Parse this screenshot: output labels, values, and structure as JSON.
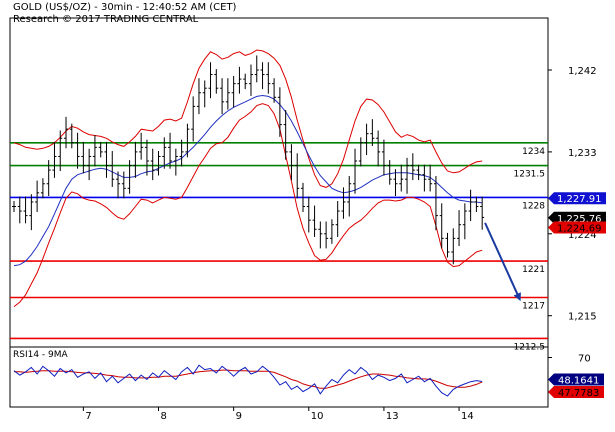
{
  "header": {
    "title": "GOLD (US$/OZ) - 30min - 12:40:52 AM (CET)",
    "subtitle": "Research © 2017 TRADING CENTRAL"
  },
  "chart_data": [
    {
      "type": "line",
      "title": "GOLD (US$/OZ) - 30min - 12:40:52 AM (CET)",
      "ylim": [
        1212,
        1245
      ],
      "y_ticks": [
        1215,
        1224,
        1233,
        1242
      ],
      "x_ticks": [
        "7",
        "8",
        "9",
        "10",
        "13",
        "14"
      ],
      "x_tick_index": [
        12,
        25,
        38,
        51,
        64,
        77
      ],
      "n_bars": 82,
      "grid": false,
      "colors": {
        "price": "#000000",
        "bollinger": "#dd0000",
        "ma": "#2030c0",
        "resistance": "#008000",
        "pivot": "#0000ee",
        "support": "#ee0000",
        "arrow": "#1a3aa0"
      },
      "series": [
        {
          "name": "",
          "values": [
            1227.0,
            1226.5,
            1226.0,
            1227.5,
            1228.5,
            1229.5,
            1231.0,
            1232.5,
            1234.5,
            1235.5,
            1234.0,
            1232.5,
            1231.5,
            1232.5,
            1233.5,
            1233.0,
            1231.5,
            1230.0,
            1229.5,
            1229.0,
            1231.5,
            1233.0,
            1233.5,
            1232.0,
            1231.0,
            1232.5,
            1233.5,
            1232.0,
            1232.5,
            1233.0,
            1235.5,
            1238.0,
            1239.5,
            1240.0,
            1241.5,
            1240.0,
            1238.5,
            1239.5,
            1240.5,
            1241.0,
            1240.5,
            1241.5,
            1242.0,
            1241.5,
            1240.5,
            1239.0,
            1236.0,
            1233.0,
            1231.5,
            1229.0,
            1227.0,
            1225.5,
            1224.5,
            1224.0,
            1223.5,
            1225.0,
            1226.5,
            1227.5,
            1229.5,
            1232.0,
            1234.0,
            1235.0,
            1234.5,
            1233.0,
            1231.5,
            1230.0,
            1229.5,
            1230.0,
            1231.5,
            1231.0,
            1230.5,
            1230.0,
            1229.5,
            1226.0,
            1223.5,
            1222.0,
            1223.5,
            1225.0,
            1226.5,
            1227.5,
            1227.0,
            1225.8
          ]
        },
        {
          "name": "",
          "values": [
            1234.0,
            1233.8,
            1233.5,
            1233.4,
            1233.3,
            1233.4,
            1233.6,
            1234.0,
            1234.6,
            1235.3,
            1235.8,
            1235.6,
            1235.2,
            1234.9,
            1234.8,
            1234.7,
            1234.5,
            1234.1,
            1233.8,
            1233.6,
            1234.1,
            1234.7,
            1235.5,
            1235.4,
            1235.3,
            1235.8,
            1236.5,
            1236.6,
            1236.4,
            1236.7,
            1238.5,
            1240.5,
            1242.2,
            1243.2,
            1244.0,
            1243.7,
            1243.2,
            1243.4,
            1243.8,
            1244.0,
            1243.6,
            1243.8,
            1244.2,
            1244.1,
            1243.8,
            1243.3,
            1242.5,
            1241.0,
            1239.0,
            1236.5,
            1234.3,
            1232.3,
            1230.5,
            1229.3,
            1229.1,
            1229.5,
            1230.6,
            1232.2,
            1234.3,
            1236.4,
            1238.0,
            1238.8,
            1238.7,
            1238.2,
            1237.4,
            1236.3,
            1235.2,
            1234.6,
            1234.9,
            1234.7,
            1234.3,
            1234.1,
            1234.3,
            1233.0,
            1231.8,
            1230.9,
            1230.7,
            1230.8,
            1231.2,
            1231.6,
            1231.9,
            1232.0
          ]
        },
        {
          "name": "",
          "values": [
            1220.5,
            1220.6,
            1221.0,
            1221.7,
            1222.6,
            1223.7,
            1224.8,
            1226.2,
            1227.6,
            1229.0,
            1230.0,
            1230.5,
            1230.7,
            1230.9,
            1231.1,
            1231.2,
            1231.1,
            1230.8,
            1230.5,
            1230.2,
            1230.2,
            1230.3,
            1230.6,
            1230.8,
            1230.9,
            1231.2,
            1231.5,
            1231.8,
            1232.0,
            1232.3,
            1232.9,
            1233.5,
            1234.2,
            1234.9,
            1235.7,
            1236.4,
            1237.0,
            1237.5,
            1237.9,
            1238.2,
            1238.5,
            1238.8,
            1239.1,
            1239.2,
            1239.1,
            1238.8,
            1238.2,
            1237.4,
            1236.4,
            1235.2,
            1233.9,
            1232.6,
            1231.4,
            1230.4,
            1229.7,
            1229.0,
            1228.7,
            1228.5,
            1228.6,
            1228.8,
            1229.1,
            1229.5,
            1229.9,
            1230.2,
            1230.5,
            1230.6,
            1230.7,
            1230.7,
            1230.7,
            1230.6,
            1230.5,
            1230.4,
            1230.2,
            1229.7,
            1229.1,
            1228.5,
            1228.0,
            1227.7,
            1227.6,
            1227.5,
            1227.5,
            1227.4
          ]
        },
        {
          "name": "",
          "values": [
            1216.0,
            1216.5,
            1217.3,
            1218.5,
            1219.7,
            1221.3,
            1223.0,
            1224.6,
            1226.3,
            1227.9,
            1228.6,
            1228.4,
            1227.9,
            1227.7,
            1227.6,
            1227.3,
            1226.9,
            1226.3,
            1225.8,
            1225.6,
            1226.2,
            1227.0,
            1227.8,
            1227.7,
            1227.4,
            1227.7,
            1228.0,
            1227.9,
            1227.8,
            1228.0,
            1229.1,
            1230.3,
            1231.5,
            1232.4,
            1233.4,
            1233.9,
            1234.0,
            1234.6,
            1235.6,
            1236.5,
            1236.9,
            1237.4,
            1238.1,
            1238.3,
            1238.1,
            1237.2,
            1235.5,
            1232.6,
            1229.8,
            1226.8,
            1224.6,
            1223.0,
            1221.6,
            1221.1,
            1221.2,
            1221.9,
            1222.9,
            1223.8,
            1224.6,
            1225.1,
            1225.5,
            1226.1,
            1226.8,
            1227.4,
            1227.7,
            1227.7,
            1227.6,
            1227.7,
            1228.0,
            1228.0,
            1227.8,
            1227.5,
            1227.0,
            1224.9,
            1222.4,
            1220.9,
            1220.4,
            1220.5,
            1221.0,
            1221.5,
            1222.0,
            1222.2
          ]
        }
      ],
      "levels": [
        {
          "label": "1234",
          "value": 1234.0,
          "kind": "resistance"
        },
        {
          "label": "1231.5",
          "value": 1231.5,
          "kind": "resistance"
        },
        {
          "label": "1228",
          "value": 1228.0,
          "kind": "pivot"
        },
        {
          "label": "1221",
          "value": 1221.0,
          "kind": "support"
        },
        {
          "label": "1217",
          "value": 1217.0,
          "kind": "support"
        },
        {
          "label": "1212.5",
          "value": 1212.5,
          "kind": "support"
        }
      ],
      "price_tags": [
        {
          "label": "1,227.91",
          "value": 1227.91,
          "fill": "#1010d0",
          "color": "#ffffff"
        },
        {
          "label": "1,225.76",
          "value": 1225.76,
          "fill": "#000000",
          "color": "#ffffff"
        },
        {
          "label": "1,224.69",
          "value": 1224.69,
          "fill": "#e00000",
          "color": "#000000"
        }
      ],
      "forecast_arrow": {
        "from_index": 81.5,
        "from_value": 1225.2,
        "to_index": 87.5,
        "to_value": 1216.8
      }
    },
    {
      "type": "line",
      "title": "RSI14 - 9MA",
      "ylim": [
        25,
        75
      ],
      "y_ticks": [
        70
      ],
      "x_ticks": [
        "7",
        "8",
        "9",
        "10",
        "13",
        "14"
      ],
      "x_tick_index": [
        12,
        25,
        38,
        51,
        64,
        77
      ],
      "n_bars": 82,
      "grid": false,
      "colors": {
        "rsi": "#1020c0",
        "ma": "#cc0000"
      },
      "series": [
        {
          "name": "",
          "values": [
            58,
            54,
            57,
            61,
            55,
            62,
            58,
            53,
            60,
            56,
            59,
            52,
            55,
            57,
            51,
            56,
            48,
            53,
            47,
            51,
            55,
            49,
            54,
            50,
            56,
            52,
            58,
            54,
            50,
            57,
            61,
            55,
            63,
            59,
            60,
            56,
            62,
            58,
            53,
            58,
            61,
            55,
            57,
            62,
            58,
            52,
            45,
            48,
            41,
            44,
            39,
            42,
            46,
            37,
            44,
            50,
            47,
            54,
            59,
            55,
            61,
            57,
            50,
            54,
            52,
            49,
            51,
            55,
            47,
            50,
            53,
            48,
            51,
            44,
            38,
            35,
            41,
            44,
            46,
            48,
            49,
            48.16
          ]
        },
        {
          "name": "",
          "values": [
            57,
            57,
            56.5,
            57,
            57.5,
            58,
            58,
            57.5,
            57.5,
            57.5,
            57,
            56.5,
            56,
            56,
            55.5,
            55,
            54,
            53.5,
            52.5,
            52,
            52,
            51.5,
            51.5,
            51.5,
            52,
            52,
            53,
            53,
            53,
            54,
            55,
            56,
            57,
            57.5,
            58,
            58,
            58.5,
            58.5,
            58,
            58,
            58,
            57.5,
            57.5,
            57.5,
            57.5,
            56.5,
            54.5,
            52.5,
            50,
            48.5,
            46,
            44.5,
            43.5,
            42,
            42,
            43.5,
            45,
            46.5,
            48.5,
            50.5,
            52.5,
            54,
            55,
            55,
            54.5,
            54,
            53,
            52.5,
            51.5,
            51,
            50.5,
            50.5,
            50,
            48.5,
            46.5,
            44.5,
            43.5,
            43,
            43,
            44,
            45.5,
            47.78
          ]
        }
      ],
      "price_tags": [
        {
          "label": "48.1641",
          "value": 48.16,
          "fill": "#000080",
          "color": "#ffffff"
        },
        {
          "label": "47.7783",
          "value": 47.78,
          "fill": "#e00000",
          "color": "#000000"
        }
      ]
    }
  ]
}
